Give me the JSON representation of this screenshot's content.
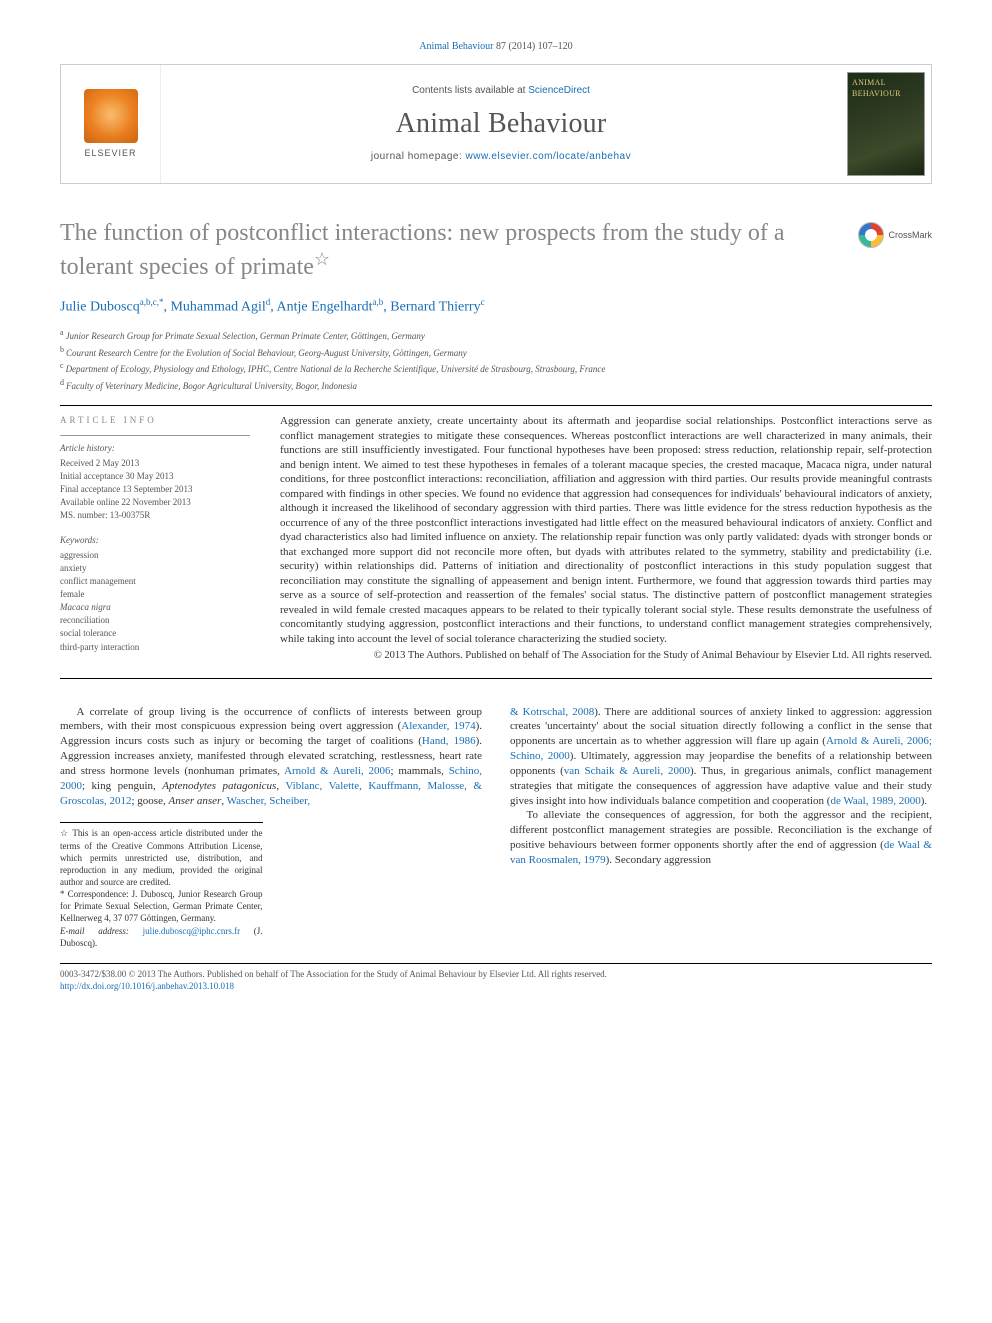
{
  "colors": {
    "link": "#1a6fb5",
    "title_gray": "#878787",
    "text": "#333333",
    "muted": "#555555",
    "rule": "#000000"
  },
  "typography": {
    "body_font": "Georgia, 'Times New Roman', serif",
    "sans_font": "Arial, sans-serif",
    "title_pt": 24,
    "journal_pt": 28,
    "abstract_pt": 11,
    "body_pt": 11,
    "affil_pt": 9
  },
  "citation": {
    "journal_link": "Animal Behaviour",
    "vol_pages": " 87 (2014) 107–120"
  },
  "masthead": {
    "contents_prefix": "Contents lists available at ",
    "contents_link": "ScienceDirect",
    "journal": "Animal Behaviour",
    "homepage_prefix": "journal homepage: ",
    "homepage_link": "www.elsevier.com/locate/anbehav",
    "publisher": "ELSEVIER",
    "cover_label": "ANIMAL BEHAVIOUR"
  },
  "article": {
    "title": "The function of postconflict interactions: new prospects from the study of a tolerant species of primate",
    "star": "☆",
    "crossmark": "CrossMark"
  },
  "authors": [
    {
      "name": "Julie Duboscq",
      "sup": "a,b,c,*"
    },
    {
      "name": "Muhammad Agil",
      "sup": "d"
    },
    {
      "name": "Antje Engelhardt",
      "sup": "a,b"
    },
    {
      "name": "Bernard Thierry",
      "sup": "c"
    }
  ],
  "affiliations": [
    {
      "sup": "a",
      "text": "Junior Research Group for Primate Sexual Selection, German Primate Center, Göttingen, Germany"
    },
    {
      "sup": "b",
      "text": "Courant Research Centre for the Evolution of Social Behaviour, Georg-August University, Göttingen, Germany"
    },
    {
      "sup": "c",
      "text": "Department of Ecology, Physiology and Ethology, IPHC, Centre National de la Recherche Scientifique, Université de Strasbourg, Strasbourg, France"
    },
    {
      "sup": "d",
      "text": "Faculty of Veterinary Medicine, Bogor Agricultural University, Bogor, Indonesia"
    }
  ],
  "article_info": {
    "heading": "ARTICLE INFO",
    "history_label": "Article history:",
    "history": [
      "Received 2 May 2013",
      "Initial acceptance 30 May 2013",
      "Final acceptance 13 September 2013",
      "Available online 22 November 2013",
      "MS. number: 13-00375R"
    ],
    "keywords_label": "Keywords:",
    "keywords": [
      "aggression",
      "anxiety",
      "conflict management",
      "female",
      "Macaca nigra",
      "reconciliation",
      "social tolerance",
      "third-party interaction"
    ]
  },
  "abstract": {
    "text": "Aggression can generate anxiety, create uncertainty about its aftermath and jeopardise social relationships. Postconflict interactions serve as conflict management strategies to mitigate these consequences. Whereas postconflict interactions are well characterized in many animals, their functions are still insufficiently investigated. Four functional hypotheses have been proposed: stress reduction, relationship repair, self-protection and benign intent. We aimed to test these hypotheses in females of a tolerant macaque species, the crested macaque, Macaca nigra, under natural conditions, for three postconflict interactions: reconciliation, affiliation and aggression with third parties. Our results provide meaningful contrasts compared with findings in other species. We found no evidence that aggression had consequences for individuals' behavioural indicators of anxiety, although it increased the likelihood of secondary aggression with third parties. There was little evidence for the stress reduction hypothesis as the occurrence of any of the three postconflict interactions investigated had little effect on the measured behavioural indicators of anxiety. Conflict and dyad characteristics also had limited influence on anxiety. The relationship repair function was only partly validated: dyads with stronger bonds or that exchanged more support did not reconcile more often, but dyads with attributes related to the symmetry, stability and predictability (i.e. security) within relationships did. Patterns of initiation and directionality of postconflict interactions in this study population suggest that reconciliation may constitute the signalling of appeasement and benign intent. Furthermore, we found that aggression towards third parties may serve as a source of self-protection and reassertion of the females' social status. The distinctive pattern of postconflict management strategies revealed in wild female crested macaques appears to be related to their typically tolerant social style. These results demonstrate the usefulness of concomitantly studying aggression, postconflict interactions and their functions, to understand conflict management strategies comprehensively, while taking into account the level of social tolerance characterizing the studied society.",
    "copyright": "© 2013 The Authors. Published on behalf of The Association for the Study of Animal Behaviour by Elsevier Ltd. All rights reserved."
  },
  "body": {
    "p1a": "A correlate of group living is the occurrence of conflicts of interests between group members, with their most conspicuous expression being overt aggression (",
    "p1_link1": "Alexander, 1974",
    "p1b": "). Aggression incurs costs such as injury or becoming the target of coalitions (",
    "p1_link2": "Hand, 1986",
    "p1c": "). Aggression increases anxiety, manifested through elevated scratching, restlessness, heart rate and stress hormone levels (nonhuman primates, ",
    "p1_link3": "Arnold & Aureli, 2006",
    "p1d": "; mammals, ",
    "p1_link4": "Schino, 2000",
    "p1e": "; king penguin, ",
    "species1": "Aptenodytes patagonicus",
    "p1f": ", ",
    "p1_link5": "Viblanc, Valette, Kauffmann, Malosse, & Groscolas, 2012",
    "p1g": "; goose, ",
    "species2": "Anser anser",
    "p1h": ", ",
    "p1_link6": "Wascher, Scheiber,",
    "p2a": "& Kotrschal, 2008",
    "p2b": "). There are additional sources of anxiety linked to aggression: aggression creates 'uncertainty' about the social situation directly following a conflict in the sense that opponents are uncertain as to whether aggression will flare up again (",
    "p2_link1": "Arnold & Aureli, 2006; Schino, 2000",
    "p2c": "). Ultimately, aggression may jeopardise the benefits of a relationship between opponents (",
    "p2_link2": "van Schaik & Aureli, 2000",
    "p2d": "). Thus, in gregarious animals, conflict management strategies that mitigate the consequences of aggression have adaptive value and their study gives insight into how individuals balance competition and cooperation (",
    "p2_link3": "de Waal, 1989, 2000",
    "p2e": ").",
    "p3a": "To alleviate the consequences of aggression, for both the aggressor and the recipient, different postconflict management strategies are possible. Reconciliation is the exchange of positive behaviours between former opponents shortly after the end of aggression (",
    "p3_link1": "de Waal & van Roosmalen, 1979",
    "p3b": "). Secondary aggression"
  },
  "footnotes": {
    "open_access": "☆ This is an open-access article distributed under the terms of the Creative Commons Attribution License, which permits unrestricted use, distribution, and reproduction in any medium, provided the original author and source are credited.",
    "corr_label": "* Correspondence: ",
    "corr_text": "J. Duboscq, Junior Research Group for Primate Sexual Selection, German Primate Center, Kellnerweg 4, 37 077 Göttingen, Germany.",
    "email_label": "E-mail address: ",
    "email": "julie.duboscq@iphc.cnrs.fr",
    "email_suffix": " (J. Duboscq)."
  },
  "footer": {
    "line1": "0003-3472/$38.00 © 2013 The Authors. Published on behalf of The Association for the Study of Animal Behaviour by Elsevier Ltd. All rights reserved.",
    "doi": "http://dx.doi.org/10.1016/j.anbehav.2013.10.018"
  }
}
